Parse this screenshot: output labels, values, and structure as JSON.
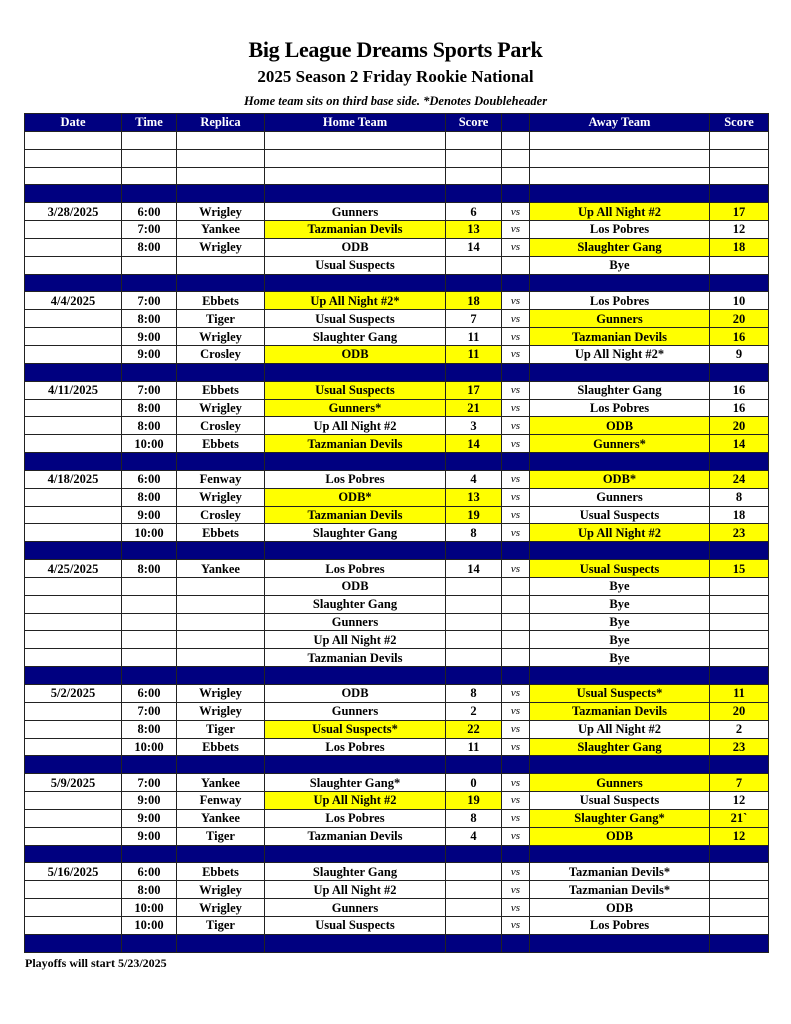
{
  "header": {
    "title": "Big League Dreams Sports Park",
    "subtitle": "2025 Season 2 Friday Rookie National",
    "note": "Home team sits on third base side.  *Denotes Doubleheader"
  },
  "colors": {
    "header_bg": "#000080",
    "winner_highlight": "#ffff00"
  },
  "columns": [
    "Date",
    "Time",
    "Replica",
    "Home Team",
    "Score",
    "",
    "Away Team",
    "Score"
  ],
  "vs_label": "vs",
  "weeks": [
    {
      "date": "3/28/2025",
      "games": [
        {
          "time": "6:00",
          "replica": "Wrigley",
          "home": "Gunners",
          "home_score": "6",
          "away": "Up All Night #2",
          "away_score": "17",
          "winner": "away"
        },
        {
          "time": "7:00",
          "replica": "Yankee",
          "home": "Tazmanian Devils",
          "home_score": "13",
          "away": "Los Pobres",
          "away_score": "12",
          "winner": "home"
        },
        {
          "time": "8:00",
          "replica": "Wrigley",
          "home": "ODB",
          "home_score": "14",
          "away": "Slaughter Gang",
          "away_score": "18",
          "winner": "away"
        },
        {
          "time": "",
          "replica": "",
          "home": "Usual Suspects",
          "home_score": "",
          "away": "Bye",
          "away_score": "",
          "winner": "",
          "bye": true
        }
      ]
    },
    {
      "date": "4/4/2025",
      "games": [
        {
          "time": "7:00",
          "replica": "Ebbets",
          "home": "Up All Night #2*",
          "home_score": "18",
          "away": "Los Pobres",
          "away_score": "10",
          "winner": "home"
        },
        {
          "time": "8:00",
          "replica": "Tiger",
          "home": "Usual Suspects",
          "home_score": "7",
          "away": "Gunners",
          "away_score": "20",
          "winner": "away"
        },
        {
          "time": "9:00",
          "replica": "Wrigley",
          "home": "Slaughter Gang",
          "home_score": "11",
          "away": "Tazmanian Devils",
          "away_score": "16",
          "winner": "away"
        },
        {
          "time": "9:00",
          "replica": "Crosley",
          "home": "ODB",
          "home_score": "11",
          "away": "Up All Night #2*",
          "away_score": "9",
          "winner": "home"
        }
      ]
    },
    {
      "date": "4/11/2025",
      "games": [
        {
          "time": "7:00",
          "replica": "Ebbets",
          "home": "Usual Suspects",
          "home_score": "17",
          "away": "Slaughter Gang",
          "away_score": "16",
          "winner": "home"
        },
        {
          "time": "8:00",
          "replica": "Wrigley",
          "home": "Gunners*",
          "home_score": "21",
          "away": "Los Pobres",
          "away_score": "16",
          "winner": "home"
        },
        {
          "time": "8:00",
          "replica": "Crosley",
          "home": "Up All Night #2",
          "home_score": "3",
          "away": "ODB",
          "away_score": "20",
          "winner": "away"
        },
        {
          "time": "10:00",
          "replica": "Ebbets",
          "home": "Tazmanian Devils",
          "home_score": "14",
          "away": "Gunners*",
          "away_score": "14",
          "winner": "both"
        }
      ]
    },
    {
      "date": "4/18/2025",
      "games": [
        {
          "time": "6:00",
          "replica": "Fenway",
          "home": "Los Pobres",
          "home_score": "4",
          "away": "ODB*",
          "away_score": "24",
          "winner": "away"
        },
        {
          "time": "8:00",
          "replica": "Wrigley",
          "home": "ODB*",
          "home_score": "13",
          "away": "Gunners",
          "away_score": "8",
          "winner": "home"
        },
        {
          "time": "9:00",
          "replica": "Crosley",
          "home": "Tazmanian Devils",
          "home_score": "19",
          "away": "Usual Suspects",
          "away_score": "18",
          "winner": "home"
        },
        {
          "time": "10:00",
          "replica": "Ebbets",
          "home": "Slaughter Gang",
          "home_score": "8",
          "away": "Up All Night #2",
          "away_score": "23",
          "winner": "away"
        }
      ]
    },
    {
      "date": "4/25/2025",
      "games": [
        {
          "time": "8:00",
          "replica": "Yankee",
          "home": "Los Pobres",
          "home_score": "14",
          "away": "Usual Suspects",
          "away_score": "15",
          "winner": "away"
        },
        {
          "time": "",
          "replica": "",
          "home": "ODB",
          "home_score": "",
          "away": "Bye",
          "away_score": "",
          "winner": "",
          "bye": true
        },
        {
          "time": "",
          "replica": "",
          "home": "Slaughter Gang",
          "home_score": "",
          "away": "Bye",
          "away_score": "",
          "winner": "",
          "bye": true
        },
        {
          "time": "",
          "replica": "",
          "home": "Gunners",
          "home_score": "",
          "away": "Bye",
          "away_score": "",
          "winner": "",
          "bye": true
        },
        {
          "time": "",
          "replica": "",
          "home": "Up All Night #2",
          "home_score": "",
          "away": "Bye",
          "away_score": "",
          "winner": "",
          "bye": true
        },
        {
          "time": "",
          "replica": "",
          "home": "Tazmanian Devils",
          "home_score": "",
          "away": "Bye",
          "away_score": "",
          "winner": "",
          "bye": true
        }
      ]
    },
    {
      "date": "5/2/2025",
      "games": [
        {
          "time": "6:00",
          "replica": "Wrigley",
          "home": "ODB",
          "home_score": "8",
          "away": "Usual Suspects*",
          "away_score": "11",
          "winner": "away"
        },
        {
          "time": "7:00",
          "replica": "Wrigley",
          "home": "Gunners",
          "home_score": "2",
          "away": "Tazmanian Devils",
          "away_score": "20",
          "winner": "away"
        },
        {
          "time": "8:00",
          "replica": "Tiger",
          "home": "Usual Suspects*",
          "home_score": "22",
          "away": "Up All Night #2",
          "away_score": "2",
          "winner": "home"
        },
        {
          "time": "10:00",
          "replica": "Ebbets",
          "home": "Los Pobres",
          "home_score": "11",
          "away": "Slaughter Gang",
          "away_score": "23",
          "winner": "away"
        }
      ]
    },
    {
      "date": "5/9/2025",
      "games": [
        {
          "time": "7:00",
          "replica": "Yankee",
          "home": "Slaughter Gang*",
          "home_score": "0",
          "away": "Gunners",
          "away_score": "7",
          "winner": "away"
        },
        {
          "time": "9:00",
          "replica": "Fenway",
          "home": "Up All Night #2",
          "home_score": "19",
          "away": "Usual Suspects",
          "away_score": "12",
          "winner": "home"
        },
        {
          "time": "9:00",
          "replica": "Yankee",
          "home": "Los Pobres",
          "home_score": "8",
          "away": "Slaughter Gang*",
          "away_score": "21`",
          "winner": "away"
        },
        {
          "time": "9:00",
          "replica": "Tiger",
          "home": "Tazmanian Devils",
          "home_score": "4",
          "away": "ODB",
          "away_score": "12",
          "winner": "away"
        }
      ]
    },
    {
      "date": "5/16/2025",
      "games": [
        {
          "time": "6:00",
          "replica": "Ebbets",
          "home": "Slaughter Gang",
          "home_score": "",
          "away": "Tazmanian Devils*",
          "away_score": "",
          "winner": ""
        },
        {
          "time": "8:00",
          "replica": "Wrigley",
          "home": "Up All Night #2",
          "home_score": "",
          "away": "Tazmanian Devils*",
          "away_score": "",
          "winner": ""
        },
        {
          "time": "10:00",
          "replica": "Wrigley",
          "home": "Gunners",
          "home_score": "",
          "away": "ODB",
          "away_score": "",
          "winner": ""
        },
        {
          "time": "10:00",
          "replica": "Tiger",
          "home": "Usual Suspects",
          "home_score": "",
          "away": "Los Pobres",
          "away_score": "",
          "winner": ""
        }
      ]
    }
  ],
  "footer": "Playoffs will start 5/23/2025"
}
